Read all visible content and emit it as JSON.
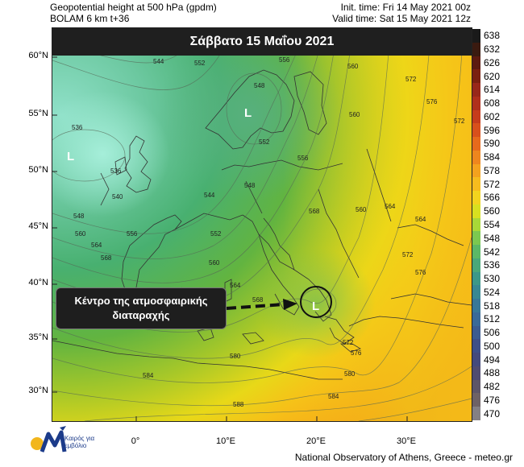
{
  "header": {
    "left_line1": "Geopotential height at 500 hPa (gpdm)",
    "left_line2": "BOLAM 6 km t+36",
    "right_line1": "Init. time: Fri 14 May 2021 00z",
    "right_line2": "Valid time: Sat 15 May 2021 12z"
  },
  "map": {
    "title": "Σάββατο 15 Μαΐου 2021",
    "annotation_line1": "Κέντρο της ατμοσφαιρικής",
    "annotation_line2": "διαταραχής",
    "lows": [
      "L",
      "L",
      "L"
    ],
    "lat_labels": [
      "60°N",
      "55°N",
      "50°N",
      "45°N",
      "40°N",
      "35°N",
      "30°N"
    ],
    "lon_labels": [
      "0°",
      "10°E",
      "20°E",
      "30°E"
    ],
    "contour_labels": [
      "540",
      "544",
      "552",
      "556",
      "548",
      "536",
      "536",
      "544",
      "540",
      "548",
      "552",
      "556",
      "560",
      "564",
      "568",
      "572",
      "576",
      "560",
      "564",
      "572",
      "576",
      "560",
      "568",
      "564",
      "560",
      "552",
      "548",
      "580",
      "584",
      "588",
      "584",
      "580",
      "576",
      "572",
      "568",
      "556",
      "560",
      "564",
      "572"
    ]
  },
  "colorbar": {
    "levels": [
      "638",
      "632",
      "626",
      "620",
      "614",
      "608",
      "602",
      "596",
      "590",
      "584",
      "578",
      "572",
      "566",
      "560",
      "554",
      "548",
      "542",
      "536",
      "530",
      "524",
      "518",
      "512",
      "506",
      "500",
      "494",
      "488",
      "482",
      "476",
      "470"
    ],
    "colors": [
      "#1a1a1a",
      "#3a1a10",
      "#5c1a10",
      "#7a2010",
      "#98281a",
      "#b0301c",
      "#c63c1c",
      "#d8501c",
      "#e66a1c",
      "#ee861e",
      "#f4a21e",
      "#f6bc1e",
      "#f2d41e",
      "#d8e020",
      "#a8d838",
      "#7cc850",
      "#5cb866",
      "#4aa87a",
      "#3c9888",
      "#388892",
      "#387898",
      "#3a6a98",
      "#3c5c90",
      "#3e5088",
      "#444a7c",
      "#504c70",
      "#5e5668",
      "#6e6266",
      "#848084"
    ]
  },
  "footer": {
    "credit": "National Observatory of Athens, Greece - meteo.gr",
    "logo_text_line1": "Καιρός για",
    "logo_text_line2": "εμβόλιο"
  }
}
